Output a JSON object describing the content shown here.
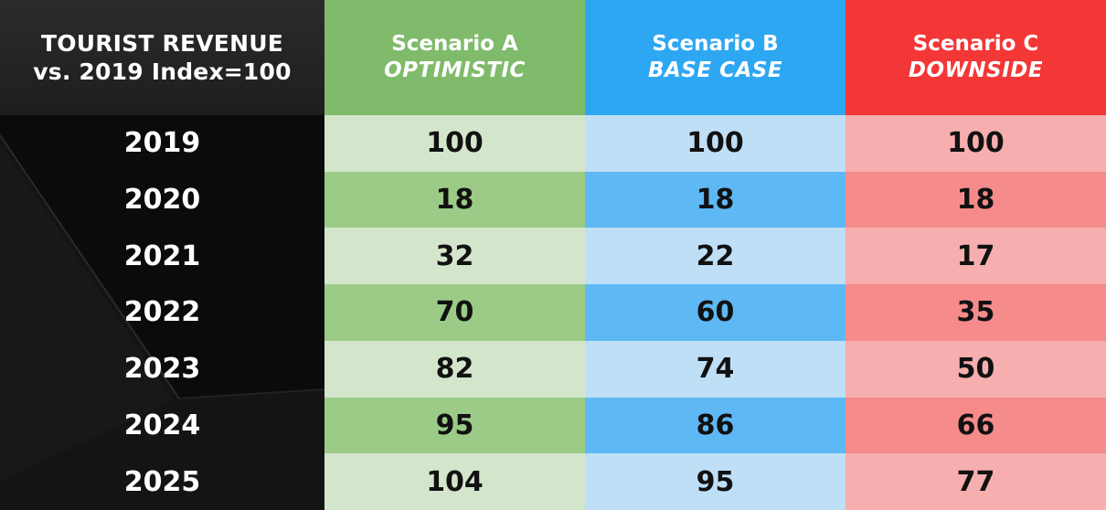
{
  "header": {
    "title_line1": "TOURIST REVENUE",
    "title_line2": "vs. 2019 Index=100"
  },
  "colors": {
    "a_head": "#7fbb6b",
    "a_light": "#d3e6cb",
    "a_dark": "#9ccb88",
    "b_head": "#2ea7f3",
    "b_light": "#bfdff7",
    "b_dark": "#5db8f4",
    "c_head": "#f33636",
    "c_light": "#f6aeae",
    "c_dark": "#f58b8b"
  },
  "chart_data": {
    "type": "table",
    "title": "TOURIST REVENUE vs. 2019 Index=100",
    "categories": [
      "2019",
      "2020",
      "2021",
      "2022",
      "2023",
      "2024",
      "2025"
    ],
    "series": [
      {
        "name": "Scenario A",
        "subtitle": "OPTIMISTIC",
        "values": [
          100,
          18,
          32,
          70,
          82,
          95,
          104
        ]
      },
      {
        "name": "Scenario B",
        "subtitle": "BASE CASE",
        "values": [
          100,
          18,
          22,
          60,
          74,
          86,
          95
        ]
      },
      {
        "name": "Scenario C",
        "subtitle": "DOWNSIDE",
        "values": [
          100,
          18,
          17,
          35,
          50,
          66,
          77
        ]
      }
    ]
  }
}
